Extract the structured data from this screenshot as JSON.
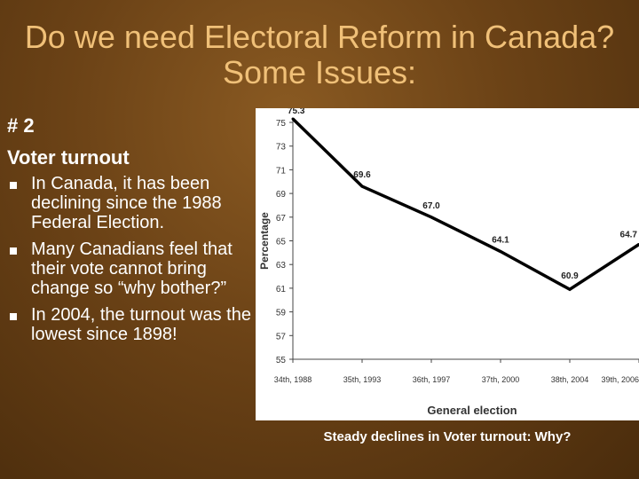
{
  "slide": {
    "title": "Do we need Electoral Reform in Canada? Some Issues:",
    "number": "# 2",
    "subtitle": "Voter turnout",
    "bullets": [
      "In Canada, it has been declining since the 1988 Federal Election.",
      "Many Canadians feel that their vote cannot bring change so “why bother?”",
      "In 2004, the turnout was the lowest since 1898!"
    ],
    "caption": "Steady declines in Voter turnout:  Why?"
  },
  "colors": {
    "background": "#6b4216",
    "title": "#f0c078",
    "text": "#ffffff",
    "line": "#000000"
  },
  "chart_data": {
    "type": "line",
    "title": "",
    "xlabel": "General election",
    "ylabel": "Percentage",
    "categories": [
      "34th, 1988",
      "35th, 1993",
      "36th, 1997",
      "37th, 2000",
      "38th, 2004",
      "39th, 2006"
    ],
    "series": [
      {
        "values": [
          75.3,
          69.6,
          67.0,
          64.1,
          60.9,
          64.7
        ],
        "labels": [
          "75.3",
          "69.6",
          "67.0",
          "64.1",
          "60.9",
          "64.7"
        ]
      }
    ],
    "yticks": [
      "55",
      "57",
      "59",
      "61",
      "63",
      "65",
      "67",
      "69",
      "71",
      "73",
      "75"
    ],
    "ylim": [
      55,
      75
    ],
    "grid": false,
    "legend": "none"
  }
}
